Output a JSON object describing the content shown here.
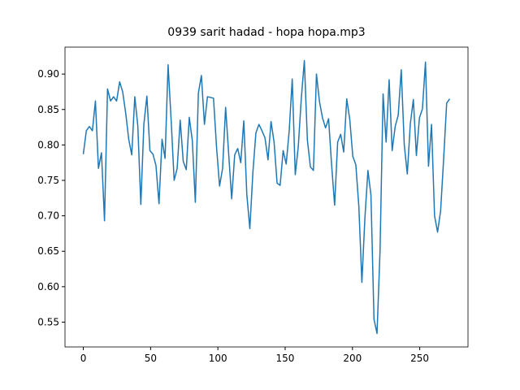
{
  "chart_data": {
    "type": "line",
    "title": "0939 sarit hadad - hopa hopa.mp3",
    "x": [
      0,
      2.25,
      4.5,
      6.75,
      9,
      11.25,
      13.5,
      15.75,
      18,
      20.25,
      22.5,
      24.75,
      27,
      29.25,
      31.5,
      33.75,
      36,
      38.25,
      40.5,
      42.75,
      45,
      47.25,
      49.5,
      51.75,
      54,
      56.25,
      58.5,
      60.75,
      63,
      65.25,
      67.5,
      69.75,
      72,
      74.25,
      76.5,
      78.75,
      81,
      83.25,
      85.5,
      87.75,
      90,
      92.25,
      94.5,
      96.75,
      99,
      101.25,
      103.5,
      105.75,
      108,
      110.25,
      112.5,
      114.75,
      117,
      119.25,
      121.5,
      123.75,
      126,
      128.25,
      130.5,
      132.75,
      135,
      137.25,
      139.5,
      141.75,
      144,
      146.25,
      148.5,
      150.75,
      153,
      155.25,
      157.5,
      159.75,
      162,
      164.25,
      166.5,
      168.75,
      171,
      173.25,
      175.5,
      177.75,
      180,
      182.25,
      184.5,
      186.75,
      189,
      191.25,
      193.5,
      195.75,
      198,
      200.25,
      202.5,
      204.75,
      207,
      209.25,
      211.5,
      213.75,
      216,
      218.25,
      220.5,
      222.75,
      225,
      227.25,
      229.5,
      231.75,
      234,
      236.25,
      238.5,
      240.75,
      243,
      245.25,
      247.5,
      249.75,
      252,
      254.25,
      256.5,
      258.75,
      261,
      263.25,
      265.5,
      267.75,
      270,
      272.25
    ],
    "series": [
      {
        "color": "#1f77b4",
        "values": [
          0.787,
          0.82,
          0.826,
          0.82,
          0.862,
          0.767,
          0.789,
          0.693,
          0.879,
          0.862,
          0.868,
          0.862,
          0.889,
          0.875,
          0.845,
          0.808,
          0.786,
          0.868,
          0.827,
          0.716,
          0.829,
          0.869,
          0.792,
          0.787,
          0.771,
          0.717,
          0.808,
          0.781,
          0.913,
          0.836,
          0.75,
          0.767,
          0.835,
          0.777,
          0.765,
          0.839,
          0.806,
          0.719,
          0.873,
          0.898,
          0.829,
          0.868,
          0.867,
          0.866,
          0.797,
          0.742,
          0.767,
          0.853,
          0.788,
          0.724,
          0.786,
          0.795,
          0.775,
          0.834,
          0.73,
          0.682,
          0.761,
          0.817,
          0.829,
          0.82,
          0.81,
          0.779,
          0.833,
          0.804,
          0.746,
          0.743,
          0.792,
          0.773,
          0.82,
          0.893,
          0.758,
          0.798,
          0.866,
          0.919,
          0.807,
          0.769,
          0.764,
          0.9,
          0.861,
          0.838,
          0.824,
          0.837,
          0.772,
          0.715,
          0.804,
          0.815,
          0.79,
          0.865,
          0.836,
          0.784,
          0.772,
          0.713,
          0.606,
          0.697,
          0.764,
          0.729,
          0.554,
          0.534,
          0.651,
          0.872,
          0.804,
          0.892,
          0.792,
          0.826,
          0.842,
          0.906,
          0.8,
          0.759,
          0.83,
          0.864,
          0.785,
          0.838,
          0.851,
          0.917,
          0.77,
          0.829,
          0.7,
          0.677,
          0.707,
          0.78,
          0.859,
          0.865
        ]
      }
    ],
    "xlim": [
      -13.6,
      285.85
    ],
    "ylim": [
      0.515,
      0.938
    ],
    "xticks": [
      0,
      50,
      100,
      150,
      200,
      250
    ],
    "yticks": [
      0.55,
      {
        "value": 0.6,
        "label": "0.60"
      },
      0.65,
      {
        "value": 0.7,
        "label": "0.70"
      },
      0.75,
      {
        "value": 0.8,
        "label": "0.80"
      },
      0.85,
      {
        "value": 0.9,
        "label": "0.90"
      }
    ]
  }
}
